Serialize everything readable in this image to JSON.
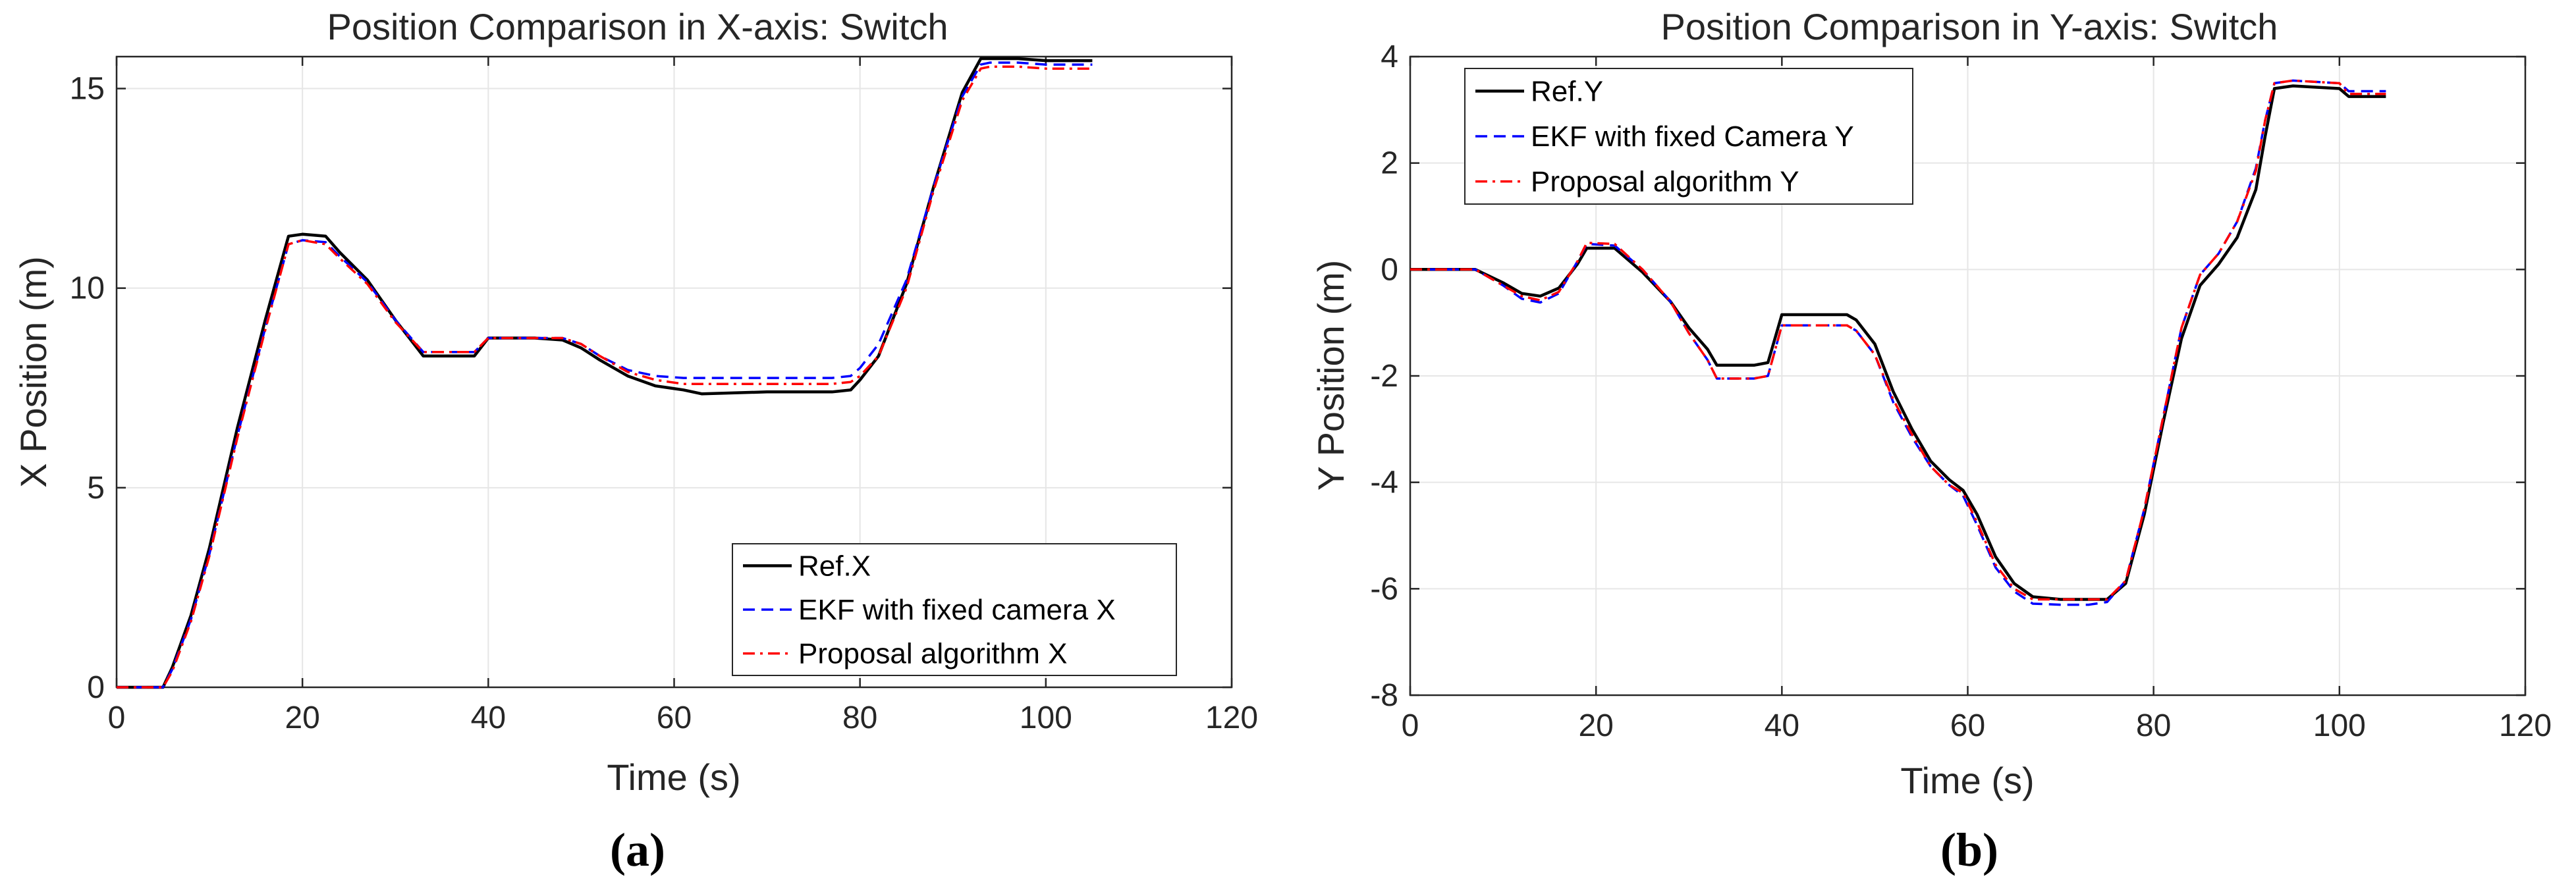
{
  "chart_data": [
    {
      "type": "line",
      "panel_label": "a",
      "title": "Position Comparison in X-axis: Switch",
      "xlabel": "Time (s)",
      "ylabel": "X Position (m)",
      "xlim": [
        0,
        120
      ],
      "ylim": [
        0,
        15.8
      ],
      "xticks": [
        0,
        20,
        40,
        60,
        80,
        100,
        120
      ],
      "yticks": [
        0,
        5,
        10,
        15
      ],
      "grid": true,
      "legend_position": "bottom-right",
      "series": [
        {
          "name": "Ref.X",
          "color": "#000000",
          "dash": "solid",
          "x": [
            0,
            5,
            6,
            8,
            10,
            13,
            16,
            18.5,
            20,
            22.5,
            24,
            27,
            30,
            33,
            35,
            37,
            38.5,
            40,
            45,
            48,
            50,
            52,
            55,
            58,
            61,
            63,
            70,
            77,
            79,
            80,
            82,
            85,
            88,
            91,
            93,
            94,
            97,
            100,
            105
          ],
          "y": [
            0,
            0,
            0.5,
            1.8,
            3.5,
            6.5,
            9.2,
            11.3,
            11.35,
            11.3,
            10.9,
            10.2,
            9.2,
            8.3,
            8.3,
            8.3,
            8.3,
            8.75,
            8.75,
            8.7,
            8.5,
            8.2,
            7.8,
            7.55,
            7.45,
            7.35,
            7.4,
            7.4,
            7.45,
            7.7,
            8.3,
            10.1,
            12.6,
            14.9,
            15.75,
            15.75,
            15.75,
            15.7,
            15.7
          ]
        },
        {
          "name": "EKF with fixed camera X",
          "color": "#0000ff",
          "dash": "dashed",
          "x": [
            0,
            5,
            6,
            8,
            10,
            13,
            16,
            18.5,
            20,
            22.5,
            24,
            27,
            30,
            33,
            35,
            37,
            38.5,
            40,
            45,
            48,
            50,
            52,
            55,
            58,
            61,
            63,
            70,
            77,
            79,
            80,
            82,
            85,
            88,
            91,
            93,
            94,
            97,
            100,
            105
          ],
          "y": [
            0,
            0,
            0.45,
            1.7,
            3.35,
            6.3,
            9.0,
            11.1,
            11.2,
            11.15,
            10.8,
            10.15,
            9.2,
            8.4,
            8.4,
            8.4,
            8.4,
            8.75,
            8.75,
            8.75,
            8.6,
            8.3,
            7.95,
            7.8,
            7.75,
            7.75,
            7.75,
            7.75,
            7.8,
            8.0,
            8.6,
            10.2,
            12.6,
            14.8,
            15.6,
            15.65,
            15.65,
            15.6,
            15.6
          ]
        },
        {
          "name": "Proposal algorithm X",
          "color": "#ff0000",
          "dash": "dashdot",
          "x": [
            0,
            5,
            6,
            8,
            10,
            13,
            16,
            18.5,
            20,
            22.5,
            24,
            27,
            30,
            33,
            35,
            37,
            38.5,
            40,
            45,
            48,
            50,
            52,
            55,
            58,
            61,
            63,
            70,
            77,
            79,
            80,
            82,
            85,
            88,
            91,
            93,
            94,
            97,
            100,
            105
          ],
          "y": [
            0,
            0,
            0.4,
            1.65,
            3.3,
            6.25,
            8.95,
            11.1,
            11.2,
            11.1,
            10.75,
            10.1,
            9.15,
            8.4,
            8.4,
            8.4,
            8.4,
            8.75,
            8.75,
            8.75,
            8.6,
            8.3,
            7.9,
            7.7,
            7.6,
            7.6,
            7.6,
            7.6,
            7.65,
            7.8,
            8.3,
            10.0,
            12.5,
            14.7,
            15.5,
            15.55,
            15.55,
            15.5,
            15.5
          ]
        }
      ]
    },
    {
      "type": "line",
      "panel_label": "b",
      "title": "Position Comparison in Y-axis: Switch",
      "xlabel": "Time (s)",
      "ylabel": "Y Position (m)",
      "xlim": [
        0,
        120
      ],
      "ylim": [
        -8,
        4
      ],
      "xticks": [
        0,
        20,
        40,
        60,
        80,
        100,
        120
      ],
      "yticks": [
        -8,
        -6,
        -4,
        -2,
        0,
        2,
        4
      ],
      "grid": true,
      "legend_position": "top-left",
      "series": [
        {
          "name": "Ref.Y",
          "color": "#000000",
          "dash": "solid",
          "x": [
            0,
            7,
            10,
            12,
            14,
            16,
            18,
            19,
            22,
            25,
            28,
            30,
            32,
            33,
            37,
            38.5,
            40,
            47,
            48,
            50,
            52,
            54,
            56,
            58,
            59.5,
            61,
            63,
            65,
            67,
            70,
            73,
            75,
            77,
            79,
            81,
            83,
            85,
            87,
            89,
            91,
            92,
            93,
            95,
            100,
            101,
            105
          ],
          "y": [
            0,
            0,
            -0.25,
            -0.45,
            -0.5,
            -0.35,
            0.1,
            0.4,
            0.4,
            -0.05,
            -0.6,
            -1.1,
            -1.5,
            -1.8,
            -1.8,
            -1.75,
            -0.85,
            -0.85,
            -0.95,
            -1.4,
            -2.3,
            -3.0,
            -3.6,
            -3.95,
            -4.15,
            -4.6,
            -5.4,
            -5.9,
            -6.15,
            -6.2,
            -6.2,
            -6.2,
            -5.9,
            -4.6,
            -2.9,
            -1.3,
            -0.3,
            0.1,
            0.6,
            1.5,
            2.5,
            3.4,
            3.45,
            3.4,
            3.25,
            3.25
          ]
        },
        {
          "name": "EKF with fixed Camera Y",
          "color": "#0000ff",
          "dash": "dashed",
          "x": [
            0,
            7,
            10,
            12,
            14,
            16,
            18,
            19,
            22,
            25,
            28,
            30,
            32,
            33,
            37,
            38.5,
            40,
            47,
            48,
            50,
            52,
            54,
            56,
            58,
            59.5,
            61,
            63,
            65,
            67,
            70,
            73,
            75,
            77,
            79,
            81,
            83,
            85,
            87,
            89,
            91,
            92,
            93,
            95,
            100,
            101,
            105
          ],
          "y": [
            0,
            0,
            -0.3,
            -0.55,
            -0.62,
            -0.45,
            0.15,
            0.48,
            0.45,
            0.0,
            -0.6,
            -1.2,
            -1.7,
            -2.05,
            -2.05,
            -2.0,
            -1.05,
            -1.05,
            -1.15,
            -1.6,
            -2.5,
            -3.15,
            -3.7,
            -4.05,
            -4.25,
            -4.8,
            -5.6,
            -6.05,
            -6.28,
            -6.3,
            -6.3,
            -6.25,
            -5.85,
            -4.5,
            -2.8,
            -1.1,
            -0.1,
            0.3,
            0.9,
            1.9,
            2.8,
            3.5,
            3.55,
            3.5,
            3.35,
            3.35
          ]
        },
        {
          "name": "Proposal algorithm Y",
          "color": "#ff0000",
          "dash": "dashdot",
          "x": [
            0,
            7,
            10,
            12,
            14,
            16,
            18,
            19,
            22,
            25,
            28,
            30,
            32,
            33,
            37,
            38.5,
            40,
            47,
            48,
            50,
            52,
            54,
            56,
            58,
            59.5,
            61,
            63,
            65,
            67,
            70,
            73,
            75,
            77,
            79,
            81,
            83,
            85,
            87,
            89,
            91,
            92,
            93,
            95,
            100,
            101,
            105
          ],
          "y": [
            0,
            0,
            -0.3,
            -0.5,
            -0.58,
            -0.42,
            0.15,
            0.5,
            0.48,
            0.0,
            -0.6,
            -1.2,
            -1.7,
            -2.05,
            -2.05,
            -2.0,
            -1.05,
            -1.05,
            -1.15,
            -1.6,
            -2.45,
            -3.1,
            -3.7,
            -4.05,
            -4.2,
            -4.75,
            -5.55,
            -6.0,
            -6.2,
            -6.2,
            -6.2,
            -6.2,
            -5.85,
            -4.5,
            -2.8,
            -1.1,
            -0.1,
            0.3,
            0.9,
            1.85,
            2.8,
            3.5,
            3.55,
            3.5,
            3.3,
            3.3
          ]
        }
      ]
    }
  ]
}
